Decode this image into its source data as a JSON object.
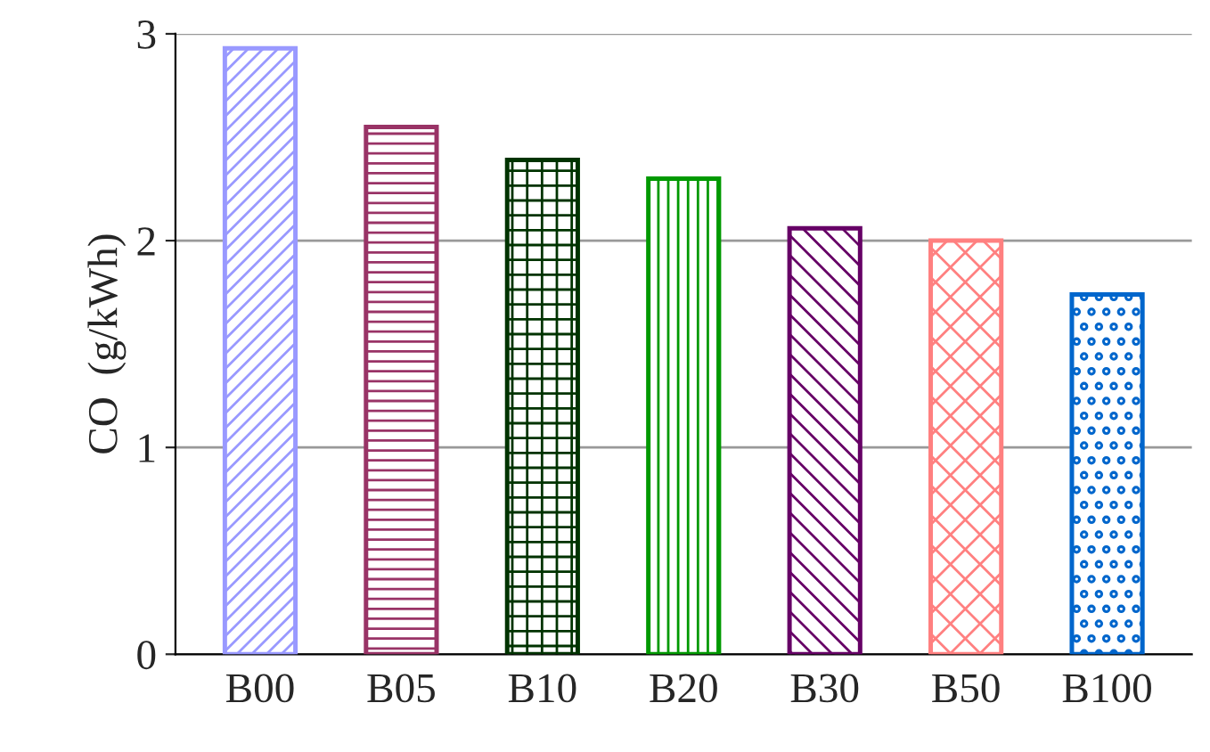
{
  "chart_data": {
    "type": "bar",
    "ylabel": "CO  (g/kWh)",
    "categories": [
      "B00",
      "B05",
      "B10",
      "B20",
      "B30",
      "B50",
      "B100"
    ],
    "values": [
      2.93,
      2.55,
      2.39,
      2.3,
      2.06,
      2.0,
      1.74
    ],
    "colors": [
      "#9999ff",
      "#993366",
      "#003300",
      "#009900",
      "#660066",
      "#ff8080",
      "#0066cc"
    ],
    "ylim": [
      0,
      3
    ],
    "yticks": [
      0,
      1,
      2,
      3
    ],
    "grid": "y",
    "legend": false
  }
}
